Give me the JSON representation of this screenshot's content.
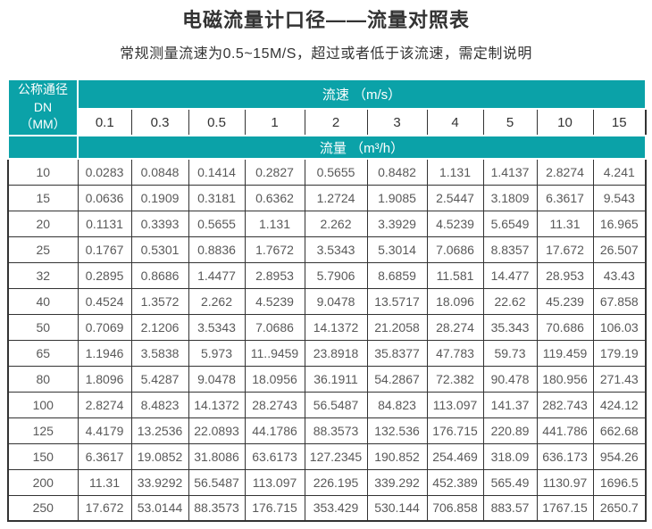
{
  "page": {
    "title": "电磁流量计口径——流量对照表",
    "subtitle": "常规测量流速为0.5~15M/S，超过或者低于该流速，需定制说明"
  },
  "colors": {
    "header_teal": "#0BA2A8",
    "border_dark": "#333333",
    "data_text": "#595959",
    "header_text_on_teal": "#FFFFFF",
    "title_text": "#333333"
  },
  "table": {
    "corner_header_line1": "公称通径DN",
    "corner_header_line2": "（MM）",
    "velocity_group_header": "流速 （m/s）",
    "flow_group_header": "流量 （m³/h）",
    "velocities": [
      "0.1",
      "0.3",
      "0.5",
      "1",
      "2",
      "3",
      "4",
      "5",
      "10",
      "15"
    ],
    "rows": [
      {
        "dn": "10",
        "values": [
          "0.0283",
          "0.0848",
          "0.1414",
          "0.2827",
          "0.5655",
          "0.8482",
          "1.131",
          "1.4137",
          "2.8274",
          "4.241"
        ]
      },
      {
        "dn": "15",
        "values": [
          "0.0636",
          "0.1909",
          "0.3181",
          "0.6362",
          "1.2724",
          "1.9085",
          "2.5447",
          "3.1809",
          "6.3617",
          "9.543"
        ]
      },
      {
        "dn": "20",
        "values": [
          "0.1131",
          "0.3393",
          "0.5655",
          "1.131",
          "2.262",
          "3.3929",
          "4.5239",
          "5.6549",
          "11.31",
          "16.965"
        ]
      },
      {
        "dn": "25",
        "values": [
          "0.1767",
          "0.5301",
          "0.8836",
          "1.7672",
          "3.5343",
          "5.3014",
          "7.0686",
          "8.8357",
          "17.672",
          "26.507"
        ]
      },
      {
        "dn": "32",
        "values": [
          "0.2895",
          "0.8686",
          "1.4477",
          "2.8953",
          "5.7906",
          "8.6859",
          "11.581",
          "14.477",
          "28.953",
          "43.43"
        ]
      },
      {
        "dn": "40",
        "values": [
          "0.4524",
          "1.3572",
          "2.262",
          "4.5239",
          "9.0478",
          "13.5717",
          "18.096",
          "22.62",
          "45.239",
          "67.858"
        ]
      },
      {
        "dn": "50",
        "values": [
          "0.7069",
          "2.1206",
          "3.5343",
          "7.0686",
          "14.1372",
          "21.2058",
          "28.274",
          "35.343",
          "70.686",
          "106.03"
        ]
      },
      {
        "dn": "65",
        "values": [
          "1.1946",
          "3.5838",
          "5.973",
          "11..9459",
          "23.8918",
          "35.8377",
          "47.783",
          "59.73",
          "119.459",
          "179.19"
        ]
      },
      {
        "dn": "80",
        "values": [
          "1.8096",
          "5.4287",
          "9.0478",
          "18.0956",
          "36.1911",
          "54.2867",
          "72.382",
          "90.478",
          "180.956",
          "271.43"
        ]
      },
      {
        "dn": "100",
        "values": [
          "2.8274",
          "8.4823",
          "14.1372",
          "28.2743",
          "56.5487",
          "84.823",
          "113.097",
          "141.37",
          "282.743",
          "424.12"
        ]
      },
      {
        "dn": "125",
        "values": [
          "4.4179",
          "13.2536",
          "22.0893",
          "44.1786",
          "88.3573",
          "132.536",
          "176.715",
          "220.89",
          "441.786",
          "662.68"
        ]
      },
      {
        "dn": "150",
        "values": [
          "6.3617",
          "19.0852",
          "31.8086",
          "63.6173",
          "127.2345",
          "190.852",
          "254.469",
          "318.09",
          "636.173",
          "954.26"
        ]
      },
      {
        "dn": "200",
        "values": [
          "11.31",
          "33.9292",
          "56.5487",
          "113.097",
          "226.195",
          "339.292",
          "452.389",
          "565.49",
          "1130.97",
          "1696.5"
        ]
      },
      {
        "dn": "250",
        "values": [
          "17.672",
          "53.0144",
          "88.3573",
          "176.715",
          "353.429",
          "530.144",
          "706.858",
          "883.57",
          "1767.15",
          "2650.7"
        ]
      }
    ]
  }
}
